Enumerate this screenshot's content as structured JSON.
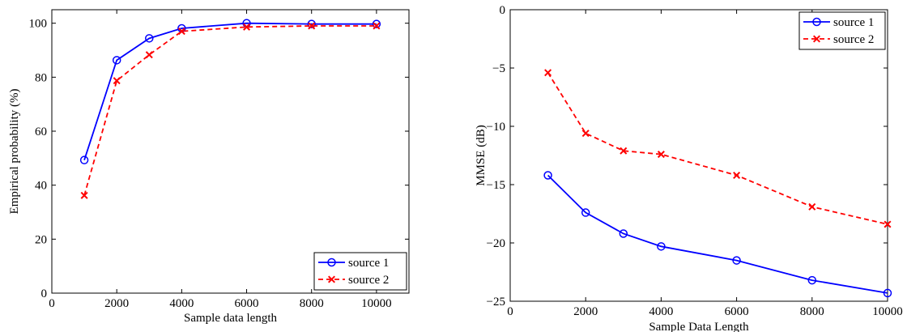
{
  "chart_data": [
    {
      "type": "line",
      "title": "",
      "xlabel": "Sample data length",
      "ylabel": "Empirical probability  (%)",
      "xlim": [
        0,
        11000
      ],
      "ylim": [
        0,
        105
      ],
      "xticks": [
        0,
        2000,
        4000,
        6000,
        8000,
        10000
      ],
      "yticks": [
        0,
        20,
        40,
        60,
        80,
        100
      ],
      "grid": false,
      "legend_position": "bottom-right",
      "x": [
        1000,
        2000,
        3000,
        4000,
        6000,
        8000,
        10000
      ],
      "series": [
        {
          "name": "source 1",
          "color": "#0000ff",
          "line": "solid",
          "marker": "circle",
          "values": [
            49.3,
            86.3,
            94.4,
            98.1,
            100,
            99.7,
            99.7
          ]
        },
        {
          "name": "source 2",
          "color": "#ff0000",
          "line": "dashed",
          "marker": "x",
          "values": [
            36.2,
            78.7,
            88.3,
            97.0,
            98.6,
            99.0,
            99.0
          ]
        }
      ]
    },
    {
      "type": "line",
      "title": "",
      "xlabel": "Sample Data Length",
      "ylabel": "MMSE (dB)",
      "xlim": [
        0,
        10000
      ],
      "ylim": [
        -25,
        0
      ],
      "xticks": [
        0,
        2000,
        4000,
        6000,
        8000,
        10000
      ],
      "yticks": [
        -25,
        -20,
        -15,
        -10,
        -5,
        0
      ],
      "grid": false,
      "legend_position": "top-right",
      "x": [
        1000,
        2000,
        3000,
        4000,
        6000,
        8000,
        10000
      ],
      "series": [
        {
          "name": "source 1",
          "color": "#0000ff",
          "line": "solid",
          "marker": "circle",
          "values": [
            -14.2,
            -17.4,
            -19.2,
            -20.3,
            -21.5,
            -23.2,
            -24.3
          ]
        },
        {
          "name": "source 2",
          "color": "#ff0000",
          "line": "dashed",
          "marker": "x",
          "values": [
            -5.4,
            -10.6,
            -12.1,
            -12.4,
            -14.2,
            -16.9,
            -18.4
          ]
        }
      ]
    }
  ]
}
